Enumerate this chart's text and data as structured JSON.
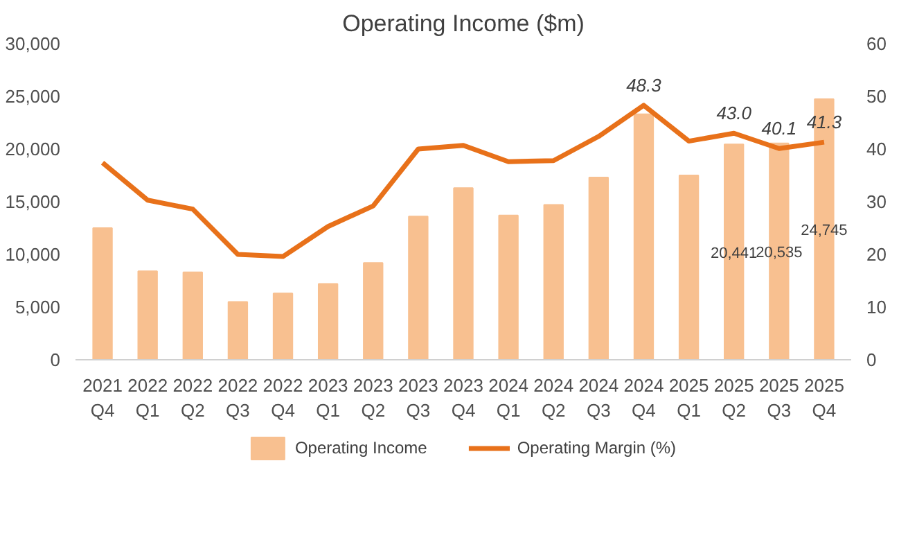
{
  "chart_data": {
    "type": "bar",
    "title": "Operating Income ($m)",
    "categories": [
      "2021\nQ4",
      "2022\nQ1",
      "2022\nQ2",
      "2022\nQ3",
      "2022\nQ4",
      "2023\nQ1",
      "2023\nQ2",
      "2023\nQ3",
      "2023\nQ4",
      "2024\nQ1",
      "2024\nQ2",
      "2024\nQ3",
      "2024\nQ4",
      "2025\nQ1",
      "2025\nQ2",
      "2025\nQ3",
      "2025\nQ4"
    ],
    "series": [
      {
        "name": "Operating Income",
        "color": "#f8c090",
        "values": [
          12500,
          8400,
          8300,
          5500,
          6300,
          7200,
          9200,
          13600,
          16300,
          13700,
          14700,
          17300,
          23300,
          17500,
          20441,
          20535,
          24745
        ],
        "value_labels": [
          null,
          null,
          null,
          null,
          null,
          null,
          null,
          null,
          null,
          null,
          null,
          null,
          null,
          null,
          "20,441",
          "20,535",
          "24,745"
        ]
      },
      {
        "name": "Operating Margin (%)",
        "type": "line",
        "axis": "y2",
        "color": "#e8711a",
        "values": [
          37.4,
          30.3,
          28.6,
          20.0,
          19.6,
          25.3,
          29.2,
          40.0,
          40.7,
          37.6,
          37.8,
          42.4,
          48.3,
          41.5,
          43.0,
          40.1,
          41.3
        ],
        "value_labels": [
          null,
          null,
          null,
          null,
          null,
          null,
          null,
          null,
          null,
          null,
          null,
          null,
          "48.3",
          null,
          "43.0",
          "40.1",
          "41.3"
        ]
      }
    ],
    "ylim": [
      0,
      30000
    ],
    "yticks": [
      {
        "value": 0,
        "label": "0"
      },
      {
        "value": 5000,
        "label": "5,000"
      },
      {
        "value": 10000,
        "label": "10,000"
      },
      {
        "value": 15000,
        "label": "15,000"
      },
      {
        "value": 20000,
        "label": "20,000"
      },
      {
        "value": 25000,
        "label": "25,000"
      },
      {
        "value": 30000,
        "label": "30,000"
      }
    ],
    "y2lim": [
      0,
      60
    ],
    "y2ticks": [
      0,
      10,
      20,
      30,
      40,
      50,
      60
    ],
    "grid": false,
    "legend": "bottom",
    "marker": "none",
    "line_style": "solid"
  }
}
